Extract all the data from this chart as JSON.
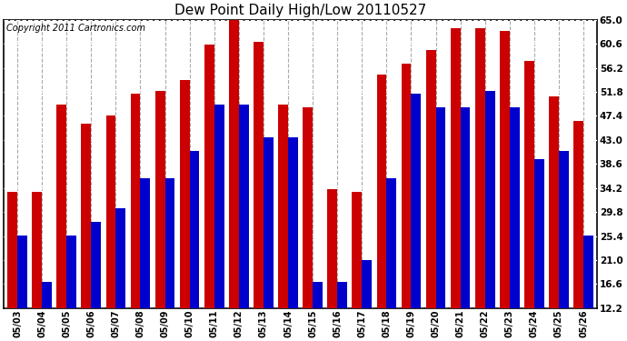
{
  "title": "Dew Point Daily High/Low 20110527",
  "copyright": "Copyright 2011 Cartronics.com",
  "dates": [
    "05/03",
    "05/04",
    "05/05",
    "05/06",
    "05/07",
    "05/08",
    "05/09",
    "05/10",
    "05/11",
    "05/12",
    "05/13",
    "05/14",
    "05/15",
    "05/16",
    "05/17",
    "05/18",
    "05/19",
    "05/20",
    "05/21",
    "05/22",
    "05/23",
    "05/24",
    "05/25",
    "05/26"
  ],
  "highs": [
    33.5,
    33.5,
    49.5,
    46.0,
    47.5,
    51.5,
    52.0,
    54.0,
    60.5,
    65.0,
    61.0,
    49.5,
    49.0,
    34.0,
    33.5,
    55.0,
    57.0,
    59.5,
    63.5,
    63.5,
    63.0,
    57.5,
    51.0,
    46.5
  ],
  "lows": [
    25.5,
    17.0,
    25.5,
    28.0,
    30.5,
    36.0,
    36.0,
    41.0,
    49.5,
    49.5,
    43.5,
    43.5,
    17.0,
    17.0,
    21.0,
    36.0,
    51.5,
    49.0,
    49.0,
    52.0,
    49.0,
    39.5,
    41.0,
    25.5
  ],
  "high_color": "#cc0000",
  "low_color": "#0000cc",
  "bg_color": "#ffffff",
  "grid_color": "#aaaaaa",
  "y_ticks": [
    12.2,
    16.6,
    21.0,
    25.4,
    29.8,
    34.2,
    38.6,
    43.0,
    47.4,
    51.8,
    56.2,
    60.6,
    65.0
  ],
  "ylim": [
    12.2,
    65.0
  ],
  "title_fontsize": 11,
  "copyright_fontsize": 7,
  "tick_fontsize": 7.5,
  "xlabel_fontsize": 7
}
